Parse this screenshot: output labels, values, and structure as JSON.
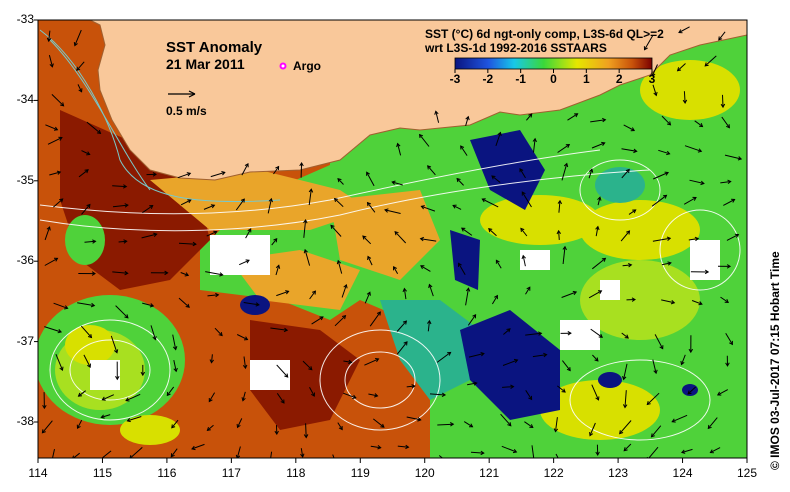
{
  "map": {
    "title": "SST Anomaly",
    "date": "21 Mar 2011",
    "argo_label": "Argo",
    "scale_label": "0.5 m/s",
    "colorbar": {
      "title_line1": "SST (°C) 6d ngt-only comp, L3S-6d QL>=2",
      "title_line2": "wrt L3S-1d 1992-2016 SSTAARS",
      "ticks": [
        "-3",
        "-2",
        "-1",
        "0",
        "1",
        "2",
        "3"
      ]
    },
    "lon_ticks": [
      "114",
      "115",
      "116",
      "117",
      "118",
      "119",
      "120",
      "121",
      "122",
      "123",
      "124",
      "125"
    ],
    "lat_ticks": [
      "-33",
      "-34",
      "-35",
      "-36",
      "-37",
      "-38"
    ],
    "credit": "©  IMOS 03-Jul-2017 07:15 Hobart Time",
    "colors": {
      "land": "#f9c89a",
      "warm_dark": "#8b1a00",
      "warm": "#c8520a",
      "orange": "#e9a52a",
      "yellow": "#d8e000",
      "green": "#4fd23a",
      "teal": "#2bb38c",
      "cold": "#0a1480",
      "argo": "#ff00ff"
    }
  }
}
